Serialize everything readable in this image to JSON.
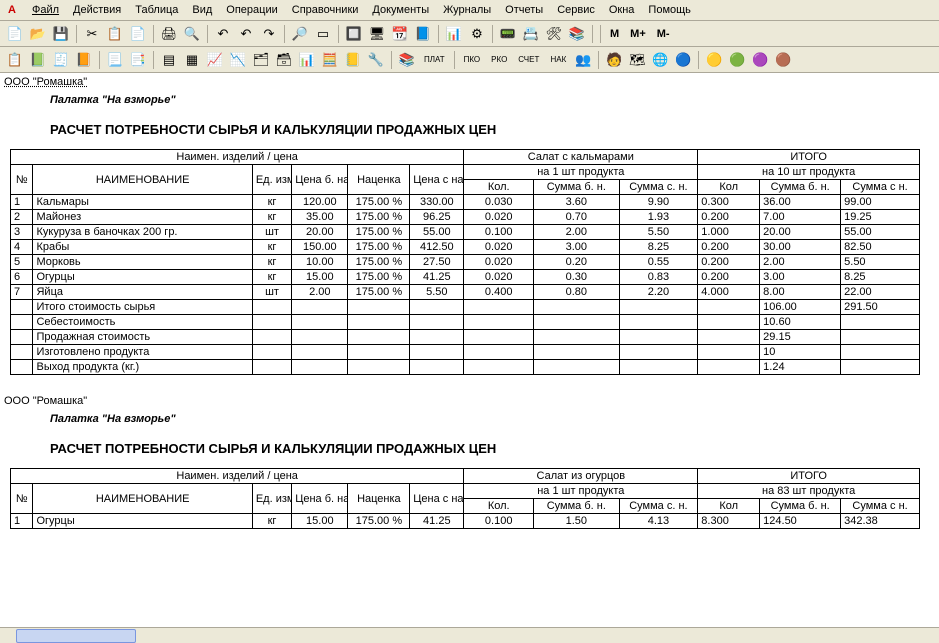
{
  "menu": {
    "items": [
      "Файл",
      "Действия",
      "Таблица",
      "Вид",
      "Операции",
      "Справочники",
      "Документы",
      "Журналы",
      "Отчеты",
      "Сервис",
      "Окна",
      "Помощь"
    ]
  },
  "toolbar1": {
    "icons": [
      "📄",
      "📂",
      "💾",
      "✂",
      "📋",
      "📄",
      "🖨",
      "🔍",
      "↶",
      "↶",
      "↷",
      "🔎",
      "▭",
      "🔲",
      "🖥",
      "📆",
      "📘",
      "📊",
      "⚙",
      "📟",
      "📇",
      "🛠",
      "📚"
    ],
    "textButtons": [
      "M",
      "M+",
      "M-"
    ]
  },
  "toolbar2": {
    "icons": [
      "📋",
      "📗",
      "🧾",
      "📙",
      "📃",
      "📑",
      "▤",
      "▦",
      "📈",
      "📉",
      "🗂",
      "🗃",
      "📊",
      "🧮",
      "📒",
      "🔧",
      "📚",
      "ПЛАТ",
      "ПКО",
      "РКО",
      "СЧЕТ",
      "НАК",
      "👥",
      "🧑",
      "🗺",
      "🌐",
      "🔵",
      "🟡",
      "🟢",
      "🟣",
      "🟤"
    ]
  },
  "org": "ООО \"Ромашка\"",
  "stall": "Палатка \"На взморье\"",
  "reportTitle": "РАСЧЕТ ПОТРЕБНОСТИ СЫРЬЯ И КАЛЬКУЛЯЦИИ ПРОДАЖНЫХ ЦЕН",
  "headers": {
    "left": "Наимен. изделий / цена",
    "total": "ИТОГО",
    "no": "№",
    "name": "НАИМЕНОВАНИЕ",
    "ed": "Ед. изм.",
    "priceB": "Цена б. нац.",
    "markup": "Наценка",
    "priceS": "Цена с нац.",
    "kol": "Кол.",
    "sumB": "Сумма б. н.",
    "sumS": "Сумма с. н.",
    "kol2": "Кол",
    "sumB2": "Сумма б. н.",
    "sumS2": "Сумма с н."
  },
  "report1": {
    "product": "Салат с кальмарами",
    "perUnit": "на 1 шт продукта",
    "perTotal": "на 10 шт продукта",
    "rows": [
      {
        "n": "1",
        "name": "Кальмары",
        "ed": "кг",
        "pb": "120.00",
        "mark": "175.00 %",
        "ps": "330.00",
        "kol": "0.030",
        "sbn": "3.60",
        "ssn": "9.90",
        "kol2": "0.300",
        "sbn2": "36.00",
        "ssn2": "99.00"
      },
      {
        "n": "2",
        "name": "Майонез",
        "ed": "кг",
        "pb": "35.00",
        "mark": "175.00 %",
        "ps": "96.25",
        "kol": "0.020",
        "sbn": "0.70",
        "ssn": "1.93",
        "kol2": "0.200",
        "sbn2": "7.00",
        "ssn2": "19.25"
      },
      {
        "n": "3",
        "name": "Кукуруза в баночках 200 гр.",
        "ed": "шт",
        "pb": "20.00",
        "mark": "175.00 %",
        "ps": "55.00",
        "kol": "0.100",
        "sbn": "2.00",
        "ssn": "5.50",
        "kol2": "1.000",
        "sbn2": "20.00",
        "ssn2": "55.00"
      },
      {
        "n": "4",
        "name": "Крабы",
        "ed": "кг",
        "pb": "150.00",
        "mark": "175.00 %",
        "ps": "412.50",
        "kol": "0.020",
        "sbn": "3.00",
        "ssn": "8.25",
        "kol2": "0.200",
        "sbn2": "30.00",
        "ssn2": "82.50"
      },
      {
        "n": "5",
        "name": "Морковь",
        "ed": "кг",
        "pb": "10.00",
        "mark": "175.00 %",
        "ps": "27.50",
        "kol": "0.020",
        "sbn": "0.20",
        "ssn": "0.55",
        "kol2": "0.200",
        "sbn2": "2.00",
        "ssn2": "5.50"
      },
      {
        "n": "6",
        "name": "Огурцы",
        "ed": "кг",
        "pb": "15.00",
        "mark": "175.00 %",
        "ps": "41.25",
        "kol": "0.020",
        "sbn": "0.30",
        "ssn": "0.83",
        "kol2": "0.200",
        "sbn2": "3.00",
        "ssn2": "8.25"
      },
      {
        "n": "7",
        "name": "Яйца",
        "ed": "шт",
        "pb": "2.00",
        "mark": "175.00 %",
        "ps": "5.50",
        "kol": "0.400",
        "sbn": "0.80",
        "ssn": "2.20",
        "kol2": "4.000",
        "sbn2": "8.00",
        "ssn2": "22.00"
      }
    ],
    "summary": [
      {
        "label": "Итого стоимость сырья",
        "sbn2": "106.00",
        "ssn2": "291.50"
      },
      {
        "label": "Себестоимость",
        "sbn2": "10.60",
        "ssn2": ""
      },
      {
        "label": "Продажная стоимость",
        "sbn2": "29.15",
        "ssn2": ""
      },
      {
        "label": "Изготовлено продукта",
        "sbn2": "10",
        "ssn2": ""
      },
      {
        "label": "Выход продукта (кг.)",
        "sbn2": "1.24",
        "ssn2": ""
      }
    ]
  },
  "report2": {
    "product": "Салат из огурцов",
    "perUnit": "на 1 шт продукта",
    "perTotal": "на 83 шт продукта",
    "rows": [
      {
        "n": "1",
        "name": "Огурцы",
        "ed": "кг",
        "pb": "15.00",
        "mark": "175.00 %",
        "ps": "41.25",
        "kol": "0.100",
        "sbn": "1.50",
        "ssn": "4.13",
        "kol2": "8.300",
        "sbn2": "124.50",
        "ssn2": "342.38"
      }
    ]
  }
}
